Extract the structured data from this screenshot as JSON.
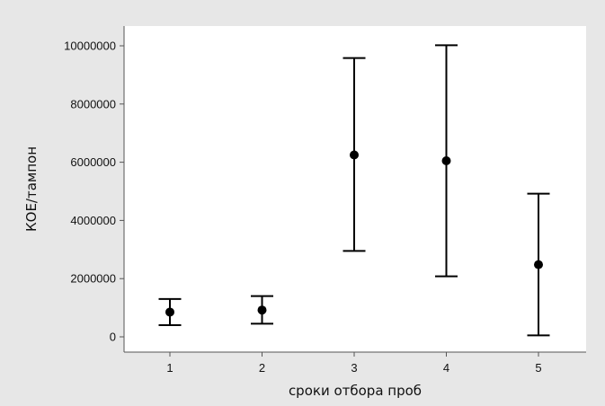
{
  "chart_data": {
    "type": "errorbar",
    "title": "",
    "xlabel": "сроки отбора проб",
    "ylabel": "КОЕ/тампон",
    "categories": [
      "1",
      "2",
      "3",
      "4",
      "5"
    ],
    "points": [
      {
        "x": "1",
        "mean": 850000,
        "low": 400000,
        "high": 1300000
      },
      {
        "x": "2",
        "mean": 920000,
        "low": 450000,
        "high": 1400000
      },
      {
        "x": "3",
        "mean": 6250000,
        "low": 2950000,
        "high": 9580000
      },
      {
        "x": "4",
        "mean": 6050000,
        "low": 2080000,
        "high": 10020000
      },
      {
        "x": "5",
        "mean": 2480000,
        "low": 50000,
        "high": 4920000
      }
    ],
    "yticks": [
      0,
      2000000,
      4000000,
      6000000,
      8000000,
      10000000
    ],
    "ytick_labels": [
      "0",
      "2000000",
      "4000000",
      "6000000",
      "8000000",
      "10000000"
    ],
    "grid": false,
    "legend": "none",
    "colors": {
      "outer_background": "#e7e7e7",
      "plot_background": "#ffffff",
      "marks": "#000000"
    }
  }
}
